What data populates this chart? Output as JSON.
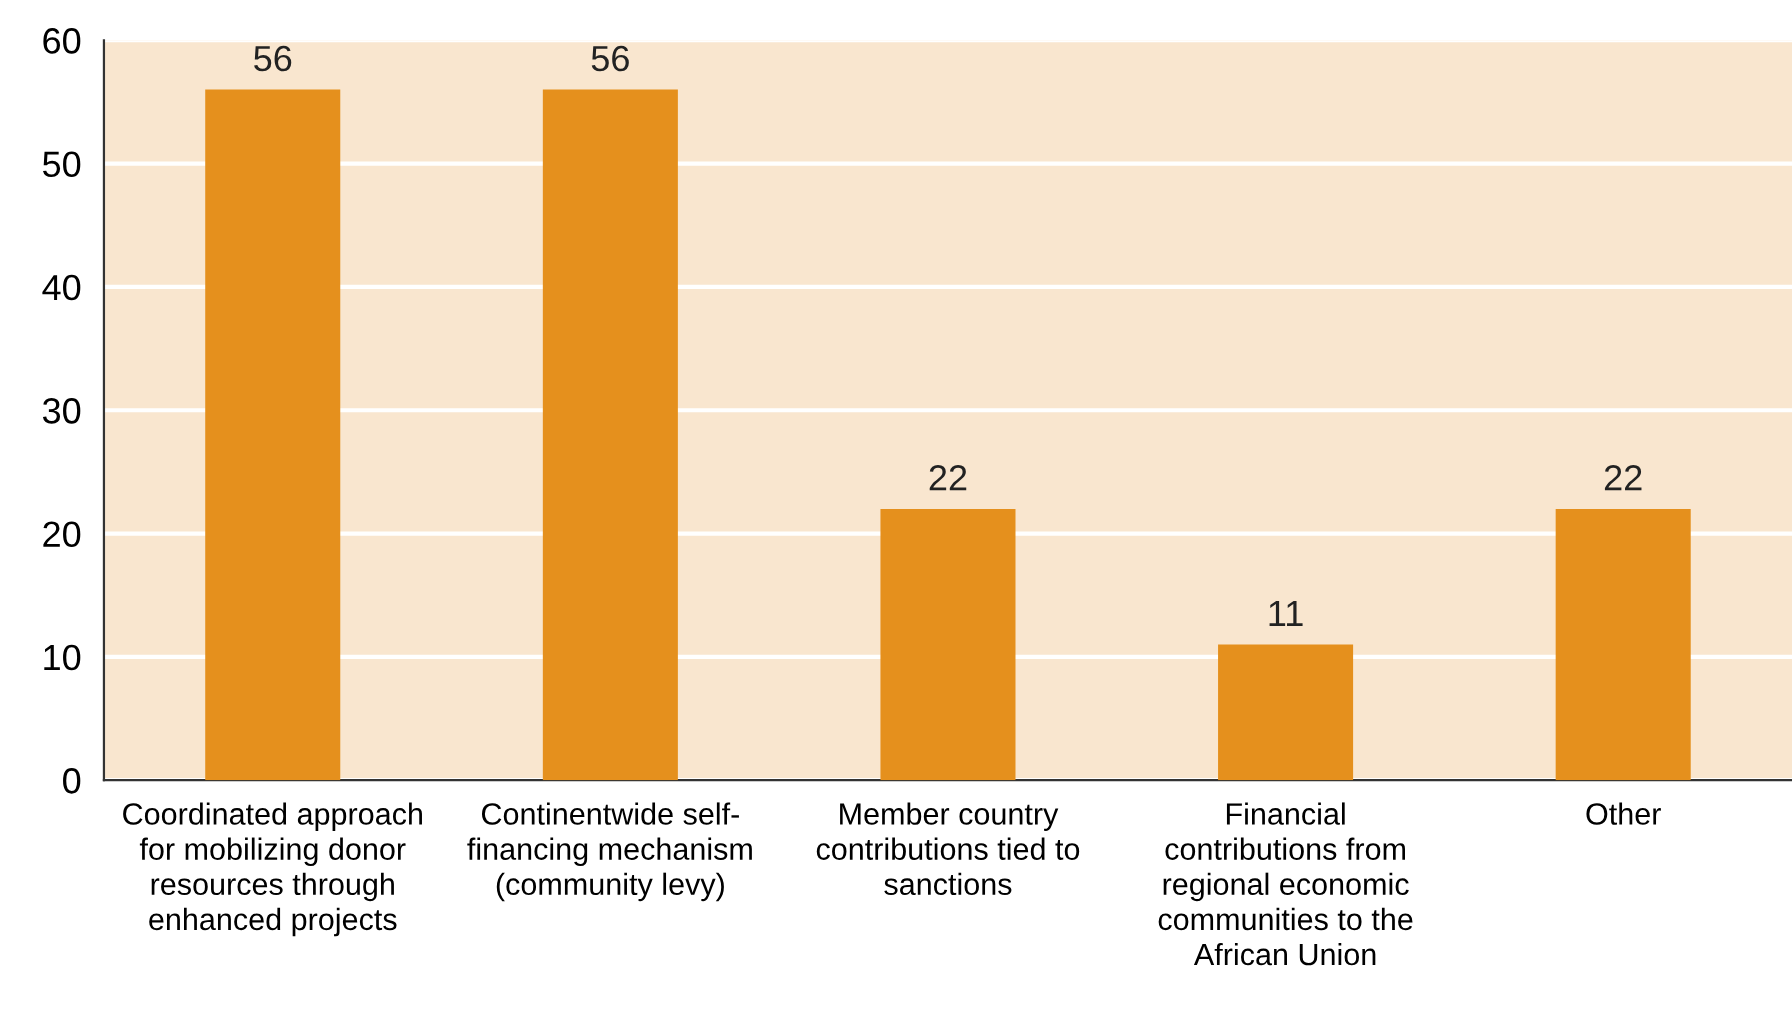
{
  "chart_data": {
    "type": "bar",
    "categories": [
      "Coordinated approach\nfor mobilizing donor\nresources through\nenhanced projects",
      "Continentwide self-\nfinancing mechanism\n(community levy)",
      "Member country\ncontributions tied to\nsanctions",
      "Financial\ncontributions from\nregional economic\ncommunities to the\nAfrican Union",
      "Other"
    ],
    "values": [
      56,
      56,
      22,
      11,
      22
    ],
    "color": "#e5901d",
    "ylim": [
      0,
      60
    ],
    "yticks": [
      0,
      10,
      20,
      30,
      40,
      50,
      60
    ],
    "grid": "y",
    "data_labels": true
  }
}
